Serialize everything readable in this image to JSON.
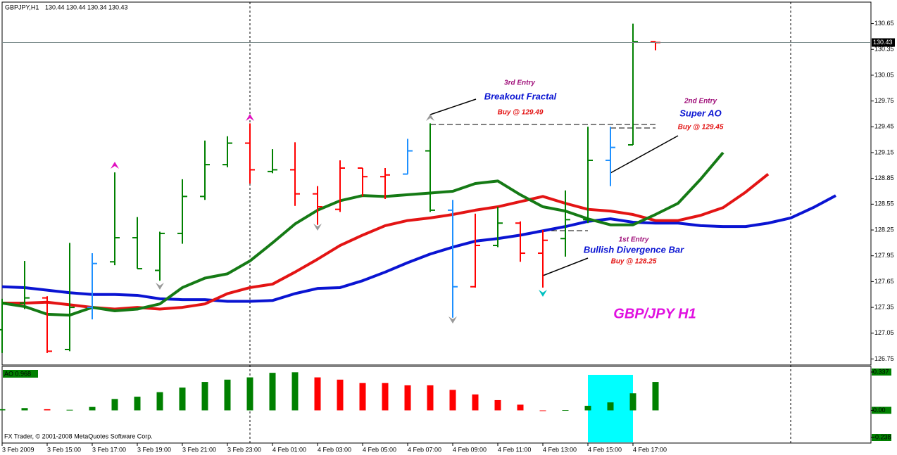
{
  "chart_data": [
    {
      "type": "ohlc",
      "symbol": "GBPJPY,H1",
      "categories": [
        "3 Feb 2009",
        null,
        "3 Feb 15:00",
        null,
        "3 Feb 17:00",
        null,
        "3 Feb 19:00",
        null,
        "3 Feb 21:00",
        null,
        "3 Feb 23:00",
        null,
        "4 Feb 01:00",
        null,
        "4 Feb 03:00",
        null,
        "4 Feb 05:00",
        null,
        "4 Feb 07:00",
        null,
        "4 Feb 09:00",
        null,
        "4 Feb 11:00",
        null,
        "4 Feb 13:00",
        null,
        "4 Feb 15:00",
        null,
        "4 Feb 17:00",
        null,
        null,
        null,
        null,
        null,
        null,
        null,
        null,
        null
      ],
      "open": [
        127.09,
        127.4,
        127.46,
        126.86,
        127.35,
        127.88,
        128.16,
        127.78,
        128.21,
        128.64,
        129.01,
        129.26,
        128.93,
        128.95,
        128.67,
        128.49,
        128.97,
        128.87,
        128.9,
        129.17,
        128.48,
        127.59,
        128.07,
        128.33,
        127.98,
        128.15,
        128.37,
        129.06,
        129.24,
        130.44,
        null,
        null,
        null,
        null,
        null,
        null,
        null,
        null
      ],
      "high": [
        127.45,
        127.89,
        127.48,
        128.1,
        127.98,
        128.92,
        128.4,
        128.23,
        128.84,
        129.29,
        129.34,
        129.49,
        129.19,
        129.27,
        128.76,
        129.06,
        128.97,
        128.97,
        129.31,
        129.49,
        128.6,
        128.44,
        128.52,
        128.35,
        128.25,
        128.71,
        129.45,
        129.45,
        130.65,
        130.44,
        null,
        null,
        null,
        null,
        null,
        null,
        null,
        null
      ],
      "low": [
        126.82,
        127.33,
        126.82,
        126.84,
        127.21,
        127.84,
        127.8,
        127.66,
        128.09,
        128.6,
        128.98,
        128.79,
        128.91,
        128.53,
        128.31,
        128.46,
        128.64,
        128.61,
        128.9,
        128.46,
        127.23,
        127.58,
        128.05,
        127.88,
        127.58,
        127.94,
        128.33,
        128.76,
        129.24,
        130.34,
        null,
        null,
        null,
        null,
        null,
        null,
        null,
        null
      ],
      "close": [
        127.4,
        127.46,
        126.84,
        127.35,
        127.86,
        128.16,
        127.8,
        128.21,
        128.64,
        129.01,
        129.26,
        128.95,
        128.95,
        128.67,
        128.52,
        128.97,
        128.87,
        128.89,
        129.17,
        128.48,
        127.59,
        128.07,
        128.33,
        127.98,
        128.13,
        128.37,
        129.06,
        129.21,
        130.44,
        130.43,
        null,
        null,
        null,
        null,
        null,
        null,
        null,
        null
      ],
      "bar_colors": [
        "#008000",
        "#008000",
        "#ff0000",
        "#008000",
        "#1e90ff",
        "#008000",
        "#008000",
        "#008000",
        "#008000",
        "#008000",
        "#008000",
        "#ff0000",
        "#008000",
        "#ff0000",
        "#ff0000",
        "#ff0000",
        "#ff0000",
        "#ff0000",
        "#1e90ff",
        "#008000",
        "#1e90ff",
        "#ff0000",
        "#008000",
        "#ff0000",
        "#ff0000",
        "#008000",
        "#008000",
        "#1e90ff",
        "#008000",
        "#ff0000",
        null,
        null,
        null,
        null,
        null,
        null,
        null,
        null
      ],
      "lines": [
        {
          "color": "#0a14d2",
          "values": [
            127.59,
            127.58,
            127.55,
            127.52,
            127.5,
            127.5,
            127.49,
            127.45,
            127.44,
            127.44,
            127.42,
            127.42,
            127.43,
            127.51,
            127.57,
            127.58,
            127.66,
            127.76,
            127.87,
            127.97,
            128.05,
            128.12,
            128.15,
            128.19,
            128.24,
            128.29,
            128.35,
            128.38,
            128.34,
            128.33,
            128.33,
            128.3,
            128.29,
            128.29,
            128.33,
            128.39,
            128.51,
            128.65
          ]
        },
        {
          "color": "#e31414",
          "values": [
            127.4,
            127.4,
            127.41,
            127.38,
            127.35,
            127.33,
            127.35,
            127.33,
            127.35,
            127.39,
            127.51,
            127.58,
            127.62,
            127.76,
            127.91,
            128.07,
            128.19,
            128.3,
            128.36,
            128.39,
            128.43,
            128.48,
            128.52,
            128.58,
            128.64,
            128.56,
            128.49,
            128.47,
            128.43,
            128.36,
            128.36,
            128.42,
            128.51,
            128.69,
            128.9,
            null,
            null,
            null
          ]
        },
        {
          "color": "#157a15",
          "values": [
            127.4,
            127.36,
            127.27,
            127.26,
            127.35,
            127.31,
            127.33,
            127.39,
            127.58,
            127.69,
            127.74,
            127.89,
            128.1,
            128.32,
            128.48,
            128.59,
            128.65,
            128.64,
            128.66,
            128.68,
            128.7,
            128.79,
            128.82,
            128.66,
            128.52,
            128.47,
            128.38,
            128.31,
            128.31,
            128.43,
            128.56,
            128.84,
            129.15,
            null,
            null,
            null,
            null,
            null
          ]
        }
      ],
      "ylim": [
        126.68,
        130.9
      ],
      "yticks": [
        130.65,
        130.35,
        130.05,
        129.75,
        129.45,
        129.15,
        128.85,
        128.55,
        128.25,
        127.95,
        127.65,
        127.35,
        127.05,
        126.75
      ],
      "annotations": [
        {
          "label": "3rd Entry",
          "title": "Breakout Fractal",
          "buy": "Buy @ 129.49"
        },
        {
          "label": "2nd Entry",
          "title": "Super AO",
          "buy": "Buy @ 129.45"
        },
        {
          "label": "1st Entry",
          "title": "Bullish Divergence Bar",
          "buy": "Buy @ 128.25"
        }
      ],
      "watermark": "GBP/JPY H1",
      "copyright": "FX Trader, © 2001-2008 MetaQuotes Software Corp."
    },
    {
      "type": "bar",
      "title": "AO 0.968",
      "values": [
        0.01,
        0.02,
        0.01,
        0.005,
        0.03,
        0.1,
        0.12,
        0.16,
        0.2,
        0.25,
        0.27,
        0.29,
        0.33,
        0.335,
        0.29,
        0.27,
        0.24,
        0.24,
        0.22,
        0.22,
        0.18,
        0.14,
        0.09,
        0.05,
        -0.005,
        0.003,
        0.04,
        0.07,
        0.15,
        0.25
      ],
      "colors": [
        "#008000",
        "#008000",
        "#ff0000",
        "#008000",
        "#008000",
        "#008000",
        "#008000",
        "#008000",
        "#008000",
        "#008000",
        "#008000",
        "#008000",
        "#008000",
        "#008000",
        "#ff0000",
        "#ff0000",
        "#ff0000",
        "#ff0000",
        "#ff0000",
        "#ff0000",
        "#ff0000",
        "#ff0000",
        "#ff0000",
        "#ff0000",
        "#ff0000",
        "#008000",
        "#008000",
        "#008000",
        "#008000",
        "#008000"
      ],
      "ylim": [
        -0.238,
        0.337
      ],
      "yticks": [
        0.337,
        {
          "value": 0,
          "label": "0.00"
        },
        -0.238
      ]
    }
  ]
}
